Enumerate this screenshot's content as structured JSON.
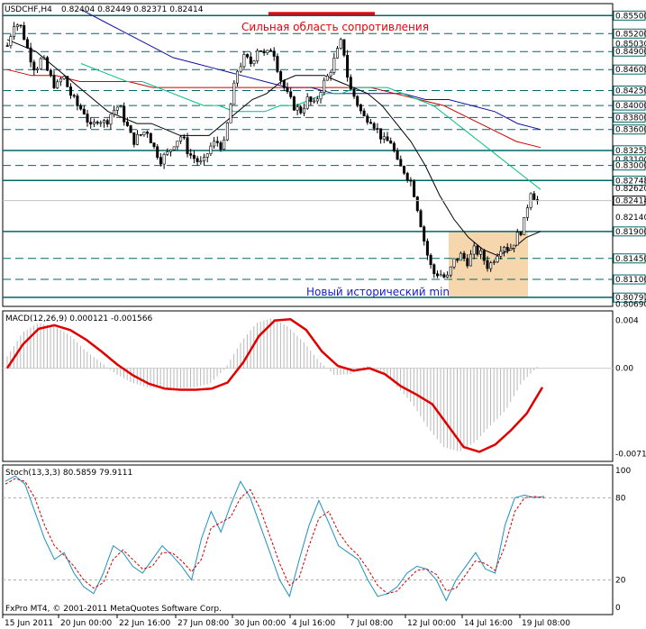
{
  "chart_data": [
    {
      "type": "candlestick",
      "symbol_title": "USDCHF,H4",
      "ohlc_readout": "0.82404 0.82449 0.82371 0.82414",
      "current_price": "0.82414",
      "y_tick_labels": [
        "0.85500",
        "0.85200",
        "0.85030",
        "0.84900",
        "0.84600",
        "0.84250",
        "0.84000",
        "0.83800",
        "0.83600",
        "0.83253",
        "0.83100",
        "0.83000",
        "0.82748",
        "0.82620",
        "0.82140",
        "0.81900",
        "0.81450",
        "0.81100",
        "0.80797",
        "0.80690"
      ],
      "boxed_levels": [
        "0.85500",
        "0.85200",
        "0.84900",
        "0.84600",
        "0.84250",
        "0.84000",
        "0.83800",
        "0.83600",
        "0.83253",
        "0.83000",
        "0.82748",
        "0.81900",
        "0.81450",
        "0.81100",
        "0.80797"
      ],
      "solid_levels": [
        0.855,
        0.8325,
        0.8275,
        0.819,
        0.808
      ],
      "dashed_levels": [
        0.852,
        0.849,
        0.846,
        0.8425,
        0.84,
        0.838,
        0.836,
        0.83,
        0.8145,
        0.811
      ],
      "ylim": [
        0.8065,
        0.857
      ],
      "x_tick_labels": [
        "15 Jun 2011",
        "20 Jun 00:00",
        "22 Jun 16:00",
        "27 Jun 08:00",
        "30 Jun 00:00",
        "4 Jul 16:00",
        "7 Jul 08:00",
        "12 Jul 00:00",
        "14 Jul 16:00",
        "19 Jul 08:00"
      ],
      "annotations": {
        "resistance": "Сильная область сопротивления",
        "new_min": "Новый исторический min"
      },
      "path": [
        0.85,
        0.854,
        0.853,
        0.849,
        0.846,
        0.848,
        0.845,
        0.843,
        0.845,
        0.842,
        0.84,
        0.839,
        0.836,
        0.838,
        0.837,
        0.839,
        0.84,
        0.837,
        0.834,
        0.835,
        0.836,
        0.833,
        0.831,
        0.832,
        0.834,
        0.835,
        0.832,
        0.831,
        0.83,
        0.833,
        0.834,
        0.833,
        0.84,
        0.846,
        0.848,
        0.847,
        0.85,
        0.848,
        0.85,
        0.845,
        0.842,
        0.84,
        0.839,
        0.841,
        0.84,
        0.843,
        0.845,
        0.848,
        0.851,
        0.843,
        0.841,
        0.838,
        0.838,
        0.836,
        0.834,
        0.834,
        0.83,
        0.829,
        0.827,
        0.822,
        0.816,
        0.812,
        0.812,
        0.811,
        0.814,
        0.815,
        0.814,
        0.816,
        0.815,
        0.813,
        0.815,
        0.817,
        0.816,
        0.818,
        0.82,
        0.826,
        0.824
      ],
      "ma_fast": [
        0.851,
        0.85,
        0.849,
        0.847,
        0.845,
        0.843,
        0.841,
        0.839,
        0.838,
        0.837,
        0.837,
        0.836,
        0.835,
        0.835,
        0.835,
        0.837,
        0.839,
        0.841,
        0.842,
        0.844,
        0.845,
        0.845,
        0.845,
        0.844,
        0.843,
        0.842,
        0.84,
        0.837,
        0.834,
        0.83,
        0.825,
        0.821,
        0.818,
        0.816,
        0.815,
        0.816,
        0.818,
        0.819
      ],
      "ma_mid": [
        0.847,
        0.846,
        0.845,
        0.844,
        0.844,
        0.843,
        0.842,
        0.841,
        0.84,
        0.84,
        0.839,
        0.839,
        0.839,
        0.84,
        0.84,
        0.841,
        0.842,
        0.842,
        0.843,
        0.843,
        0.843,
        0.842,
        0.841,
        0.84,
        0.838,
        0.836,
        0.834,
        0.832,
        0.83,
        0.828,
        0.826
      ],
      "ma_slow": [
        0.846,
        0.845,
        0.845,
        0.844,
        0.844,
        0.844,
        0.843,
        0.843,
        0.843,
        0.843,
        0.843,
        0.843,
        0.843,
        0.843,
        0.843,
        0.843,
        0.842,
        0.841,
        0.84,
        0.838,
        0.836,
        0.834,
        0.833
      ],
      "ma_long": [
        0.856,
        0.854,
        0.852,
        0.85,
        0.848,
        0.847,
        0.846,
        0.845,
        0.844,
        0.843,
        0.843,
        0.842,
        0.842,
        0.842,
        0.842,
        0.841,
        0.841,
        0.84,
        0.839,
        0.837,
        0.836
      ],
      "colors": {
        "up_body": "#ffffff",
        "down_body": "#000000",
        "line": "#000000",
        "level": "#006666",
        "ma_fast": "#000000",
        "ma_mid": "#00c080",
        "ma_slow": "#d00000",
        "ma_long": "#1010a0",
        "highlight": "#f5d6ad"
      }
    },
    {
      "type": "histogram+line",
      "title": "MACD(12,26,9) 0.000121 -0.001566",
      "y_tick_labels": [
        "0.004",
        "0.00",
        "-0.00714"
      ],
      "ylim": [
        -0.0078,
        0.0048
      ],
      "histogram": [
        0.001,
        0.003,
        0.0038,
        0.0035,
        0.0028,
        0.0015,
        0.0005,
        -0.0005,
        -0.0012,
        -0.0016,
        -0.0017,
        -0.0017,
        -0.0016,
        -0.0013,
        0.0,
        0.0022,
        0.0038,
        0.0042,
        0.0035,
        0.0022,
        0.0006,
        -0.0006,
        -0.0005,
        0.0002,
        -0.0002,
        -0.0015,
        -0.003,
        -0.005,
        -0.0066,
        -0.007,
        -0.0062,
        -0.0048,
        -0.0035,
        -0.0012,
        0.0001
      ],
      "signal": [
        0.0,
        0.002,
        0.0033,
        0.0036,
        0.0032,
        0.0024,
        0.0014,
        0.0003,
        -0.0006,
        -0.0013,
        -0.0017,
        -0.0018,
        -0.0018,
        -0.0017,
        -0.0012,
        0.0005,
        0.0027,
        0.004,
        0.0041,
        0.0032,
        0.0014,
        0.0002,
        -0.0002,
        0.0,
        -0.0005,
        -0.0015,
        -0.0022,
        -0.003,
        -0.0048,
        -0.0066,
        -0.007,
        -0.0064,
        -0.0052,
        -0.0038,
        -0.0016
      ],
      "colors": {
        "histogram": "#b8b8b8",
        "signal": "#e00000"
      }
    },
    {
      "type": "line",
      "title": "Stoch(13,3,3) 80.5859 79.9111",
      "y_tick_labels": [
        "100",
        "80",
        "20",
        "0"
      ],
      "ylim": [
        0,
        100
      ],
      "main": [
        92,
        96,
        90,
        70,
        50,
        35,
        40,
        25,
        15,
        10,
        25,
        45,
        40,
        30,
        25,
        35,
        45,
        38,
        30,
        20,
        50,
        70,
        55,
        75,
        92,
        80,
        60,
        40,
        20,
        8,
        35,
        60,
        78,
        62,
        45,
        40,
        35,
        20,
        8,
        10,
        15,
        25,
        30,
        28,
        20,
        5,
        20,
        30,
        40,
        28,
        25,
        60,
        80,
        82,
        80,
        81
      ],
      "signal": [
        90,
        94,
        92,
        80,
        60,
        45,
        38,
        30,
        20,
        14,
        18,
        35,
        42,
        35,
        28,
        30,
        40,
        40,
        34,
        26,
        35,
        58,
        62,
        66,
        80,
        86,
        72,
        52,
        32,
        16,
        22,
        45,
        65,
        70,
        55,
        45,
        38,
        28,
        16,
        10,
        12,
        20,
        27,
        28,
        24,
        12,
        14,
        24,
        34,
        32,
        27,
        45,
        70,
        80,
        81,
        80
      ],
      "colors": {
        "main": "#1e90c0",
        "signal": "#d00000"
      }
    }
  ],
  "footer": {
    "copyright": "FxPro MT4, © 2001-2011 MetaQuotes Software Corp."
  }
}
